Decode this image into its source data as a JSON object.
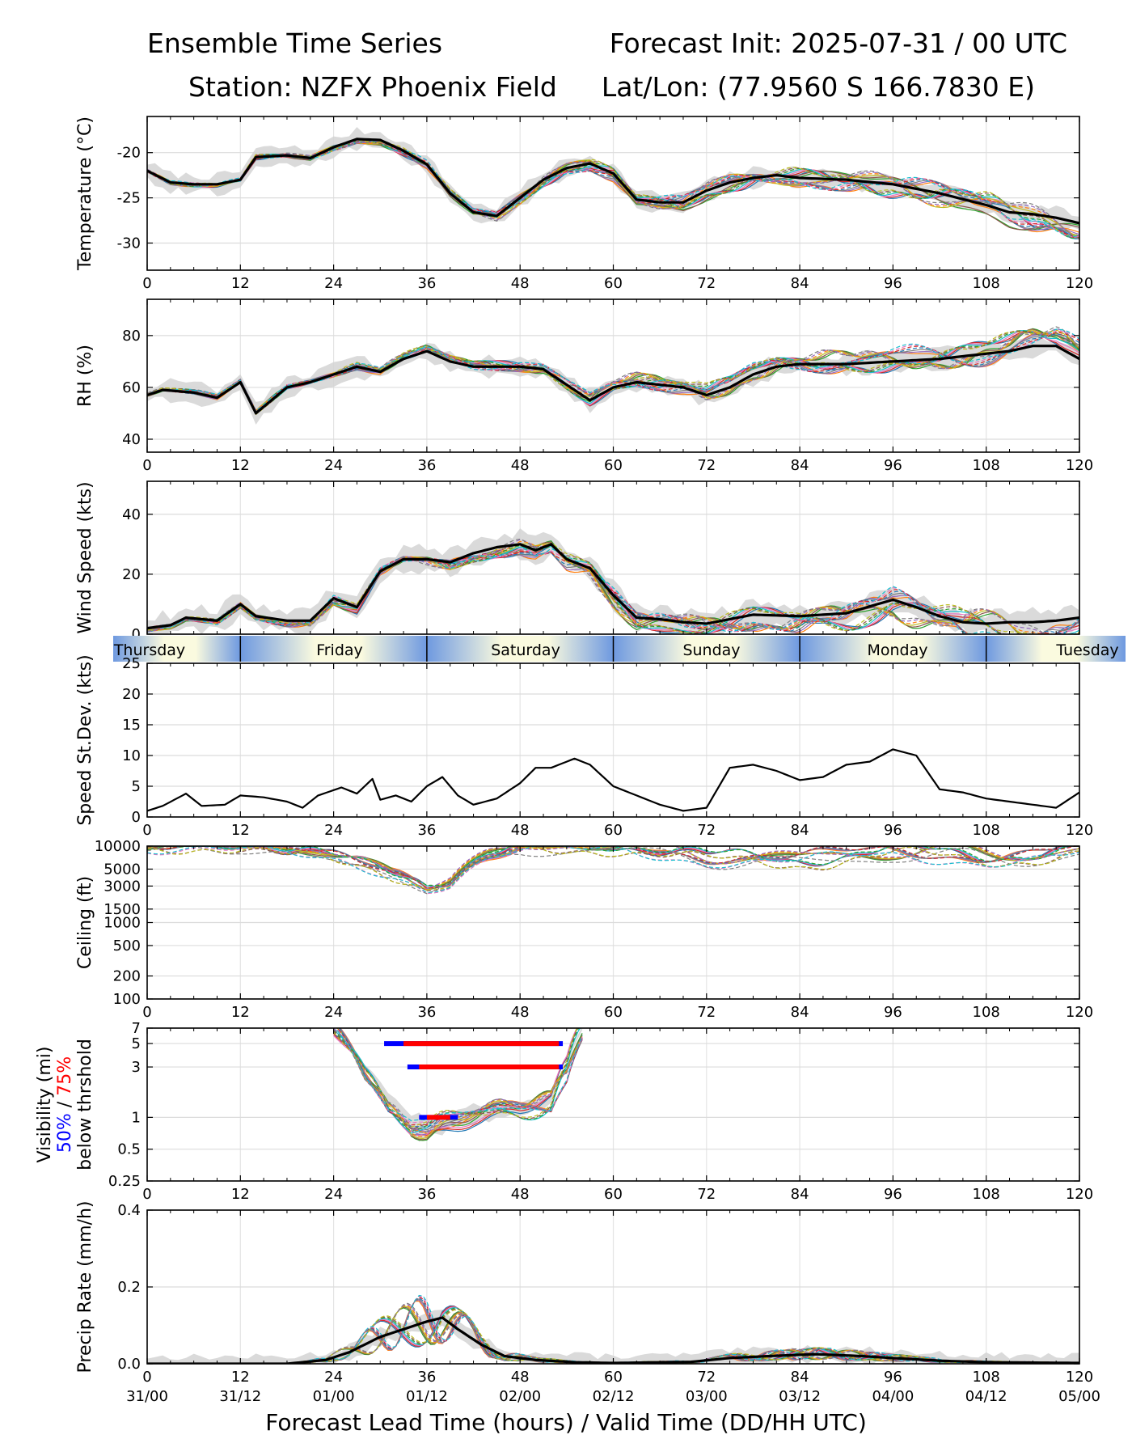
{
  "header": {
    "title_left": "Ensemble Time Series",
    "title_right": "Forecast Init: 2025-07-31 / 00 UTC",
    "station": "Station: NZFX Phoenix Field",
    "latlon": "Lat/Lon: (77.9560 S 166.7830 E)"
  },
  "xlabel": "Forecast Lead Time (hours) / Valid Time (DD/HH UTC)",
  "x_ticks": [
    0,
    12,
    24,
    36,
    48,
    60,
    72,
    84,
    96,
    108,
    120
  ],
  "valid_time_labels": [
    "31/00",
    "31/12",
    "01/00",
    "01/12",
    "02/00",
    "02/12",
    "03/00",
    "03/12",
    "04/00",
    "04/12",
    "05/00"
  ],
  "day_labels": [
    "Thursday",
    "Friday",
    "Saturday",
    "Sunday",
    "Monday",
    "Tuesday"
  ],
  "colors": {
    "mean": "#000000",
    "spread": "#d3d3d3",
    "p50": "#0000ff",
    "p75": "#ff0000",
    "members": [
      "#1f77b4",
      "#ff7f0e",
      "#2ca02c",
      "#d62728",
      "#9467bd",
      "#8c564b",
      "#e377c2",
      "#7f7f7f",
      "#bcbd22",
      "#17becf"
    ]
  },
  "chart_data": [
    {
      "type": "line",
      "ylabel": "Temperature (°C)",
      "ylim": [
        -33,
        -16
      ],
      "yticks": [
        -20,
        -25,
        -30
      ],
      "series": [
        {
          "values": [
            [
              0,
              -22
            ],
            [
              3,
              -23.3
            ],
            [
              6,
              -23.5
            ],
            [
              9,
              -23.5
            ],
            [
              12,
              -23
            ],
            [
              14,
              -20.5
            ],
            [
              18,
              -20.3
            ],
            [
              21,
              -20.6
            ],
            [
              24,
              -19.4
            ],
            [
              27,
              -18.5
            ],
            [
              30,
              -18.6
            ],
            [
              33,
              -19.8
            ],
            [
              36,
              -21.3
            ],
            [
              39,
              -24.5
            ],
            [
              42,
              -26.6
            ],
            [
              45,
              -27
            ],
            [
              48,
              -25
            ],
            [
              51,
              -23
            ],
            [
              54,
              -21.7
            ],
            [
              57,
              -21.2
            ],
            [
              60,
              -22.3
            ],
            [
              63,
              -25.2
            ],
            [
              66,
              -25.5
            ],
            [
              69,
              -25.5
            ],
            [
              72,
              -24.2
            ],
            [
              75,
              -23.3
            ],
            [
              78,
              -22.8
            ],
            [
              81,
              -22.5
            ],
            [
              84,
              -22.8
            ],
            [
              90,
              -23
            ],
            [
              96,
              -23.5
            ],
            [
              102,
              -24.5
            ],
            [
              108,
              -25.8
            ],
            [
              111,
              -26.6
            ],
            [
              114,
              -26.8
            ],
            [
              117,
              -27.2
            ],
            [
              120,
              -27.8
            ]
          ]
        }
      ]
    },
    {
      "type": "line",
      "ylabel": "RH (%)",
      "ylim": [
        35,
        94
      ],
      "yticks": [
        40,
        60,
        80
      ],
      "series": [
        {
          "values": [
            [
              0,
              57
            ],
            [
              2,
              59
            ],
            [
              6,
              58
            ],
            [
              9,
              56
            ],
            [
              12,
              62
            ],
            [
              14,
              50
            ],
            [
              16,
              55
            ],
            [
              18,
              60
            ],
            [
              21,
              62
            ],
            [
              24,
              65
            ],
            [
              27,
              68
            ],
            [
              30,
              66
            ],
            [
              33,
              71
            ],
            [
              36,
              74
            ],
            [
              39,
              70
            ],
            [
              42,
              68
            ],
            [
              48,
              68
            ],
            [
              51,
              67
            ],
            [
              54,
              61
            ],
            [
              57,
              55
            ],
            [
              60,
              60
            ],
            [
              63,
              62
            ],
            [
              66,
              61
            ],
            [
              69,
              60
            ],
            [
              72,
              57
            ],
            [
              75,
              60
            ],
            [
              78,
              65
            ],
            [
              81,
              68
            ],
            [
              84,
              69
            ],
            [
              90,
              69
            ],
            [
              96,
              70
            ],
            [
              102,
              71
            ],
            [
              108,
              73
            ],
            [
              111,
              74
            ],
            [
              114,
              76
            ],
            [
              117,
              76
            ],
            [
              120,
              71
            ]
          ]
        }
      ]
    },
    {
      "type": "line",
      "ylabel": "Wind Speed (kts)",
      "ylim": [
        0,
        51
      ],
      "yticks": [
        0,
        20,
        40
      ],
      "series": [
        {
          "values": [
            [
              0,
              2
            ],
            [
              3,
              3
            ],
            [
              5,
              5.5
            ],
            [
              9,
              4.5
            ],
            [
              12,
              10
            ],
            [
              14,
              6
            ],
            [
              18,
              4.5
            ],
            [
              21,
              4.5
            ],
            [
              24,
              12
            ],
            [
              27,
              9
            ],
            [
              30,
              21
            ],
            [
              33,
              25
            ],
            [
              36,
              25
            ],
            [
              39,
              24
            ],
            [
              42,
              27
            ],
            [
              45,
              29
            ],
            [
              48,
              30
            ],
            [
              50,
              28
            ],
            [
              52,
              30
            ],
            [
              54,
              25
            ],
            [
              57,
              22
            ],
            [
              60,
              13
            ],
            [
              63,
              5.5
            ],
            [
              66,
              5
            ],
            [
              69,
              4
            ],
            [
              72,
              3.5
            ],
            [
              75,
              5
            ],
            [
              78,
              6.5
            ],
            [
              84,
              6
            ],
            [
              90,
              7
            ],
            [
              96,
              11.5
            ],
            [
              99,
              9
            ],
            [
              102,
              6
            ],
            [
              105,
              4
            ],
            [
              108,
              3.5
            ],
            [
              111,
              4
            ],
            [
              114,
              4
            ],
            [
              117,
              4.5
            ],
            [
              120,
              5.5
            ]
          ]
        }
      ]
    },
    {
      "type": "line",
      "ylabel": "Speed St.Dev. (kts)",
      "ylim": [
        0,
        25
      ],
      "yticks": [
        0,
        5,
        10,
        15,
        20,
        25
      ],
      "series": [
        {
          "values": [
            [
              0,
              1
            ],
            [
              2,
              1.8
            ],
            [
              5,
              3.8
            ],
            [
              7,
              1.8
            ],
            [
              10,
              2
            ],
            [
              12,
              3.5
            ],
            [
              15,
              3.2
            ],
            [
              18,
              2.5
            ],
            [
              20,
              1.5
            ],
            [
              22,
              3.5
            ],
            [
              25,
              4.8
            ],
            [
              27,
              3.8
            ],
            [
              29,
              6.2
            ],
            [
              30,
              2.8
            ],
            [
              32,
              3.5
            ],
            [
              34,
              2.5
            ],
            [
              36,
              5
            ],
            [
              38,
              6.5
            ],
            [
              40,
              3.5
            ],
            [
              42,
              2
            ],
            [
              45,
              3
            ],
            [
              48,
              5.5
            ],
            [
              50,
              8
            ],
            [
              52,
              8
            ],
            [
              55,
              9.5
            ],
            [
              57,
              8.5
            ],
            [
              60,
              5
            ],
            [
              62,
              4
            ],
            [
              66,
              2
            ],
            [
              69,
              1
            ],
            [
              72,
              1.5
            ],
            [
              75,
              8
            ],
            [
              78,
              8.5
            ],
            [
              81,
              7.5
            ],
            [
              84,
              6
            ],
            [
              87,
              6.5
            ],
            [
              90,
              8.5
            ],
            [
              93,
              9
            ],
            [
              96,
              11
            ],
            [
              99,
              10
            ],
            [
              102,
              4.5
            ],
            [
              105,
              4
            ],
            [
              108,
              3
            ],
            [
              111,
              2.5
            ],
            [
              114,
              2
            ],
            [
              117,
              1.5
            ],
            [
              120,
              4
            ]
          ]
        }
      ]
    },
    {
      "type": "line",
      "ylabel": "Ceiling (ft)",
      "yscale": "log",
      "ylim": [
        100,
        10000
      ],
      "yticks": [
        10000,
        5000,
        3000,
        1500,
        1000,
        500,
        200,
        100
      ],
      "series": [
        {
          "values": [
            [
              0,
              9500
            ],
            [
              12,
              10000
            ],
            [
              24,
              7000
            ],
            [
              30,
              5000
            ],
            [
              36,
              3000
            ],
            [
              39,
              3500
            ],
            [
              44,
              7000
            ],
            [
              48,
              9000
            ],
            [
              60,
              10000
            ],
            [
              72,
              7000
            ],
            [
              84,
              6500
            ],
            [
              96,
              8000
            ],
            [
              108,
              7500
            ],
            [
              120,
              8000
            ]
          ]
        }
      ]
    },
    {
      "type": "line",
      "ylabel": "Visibility (mi)",
      "ylabel_line2_p50": "50%",
      "ylabel_line2_sep": "/",
      "ylabel_line2_p75": "75%",
      "ylabel_line3": "below thrshold",
      "yscale": "log",
      "ylim": [
        0.25,
        7
      ],
      "yticks": [
        7,
        5,
        3,
        1,
        0.5,
        0.25
      ],
      "threshold_bars": [
        {
          "threshold": 5,
          "p50": [
            30.5,
            53.5
          ],
          "p75": [
            33,
            53
          ]
        },
        {
          "threshold": 3,
          "p50": [
            33.5,
            53.5
          ],
          "p75": [
            35,
            53
          ]
        },
        {
          "threshold": 1,
          "p50": [
            35,
            40
          ],
          "p75": [
            36,
            39
          ]
        }
      ],
      "series": [
        {
          "values": [
            [
              24,
              7
            ],
            [
              28,
              3
            ],
            [
              31,
              1.5
            ],
            [
              34,
              0.9
            ],
            [
              36,
              0.8
            ],
            [
              38,
              0.9
            ],
            [
              42,
              1.1
            ],
            [
              48,
              1.2
            ],
            [
              52,
              1.5
            ],
            [
              54,
              3
            ],
            [
              56,
              7
            ]
          ]
        }
      ]
    },
    {
      "type": "line",
      "ylabel": "Precip Rate (mm/h)",
      "ylim": [
        0,
        0.4
      ],
      "yticks": [
        0.0,
        0.2,
        0.4
      ],
      "series": [
        {
          "values": [
            [
              0,
              0
            ],
            [
              18,
              0
            ],
            [
              23,
              0.01
            ],
            [
              26,
              0.03
            ],
            [
              30,
              0.07
            ],
            [
              33,
              0.09
            ],
            [
              36,
              0.11
            ],
            [
              38,
              0.12
            ],
            [
              40,
              0.09
            ],
            [
              43,
              0.05
            ],
            [
              46,
              0.02
            ],
            [
              50,
              0.01
            ],
            [
              55,
              0.004
            ],
            [
              60,
              0.002
            ],
            [
              70,
              0.005
            ],
            [
              75,
              0.015
            ],
            [
              80,
              0.02
            ],
            [
              86,
              0.025
            ],
            [
              92,
              0.02
            ],
            [
              96,
              0.015
            ],
            [
              102,
              0.008
            ],
            [
              108,
              0.004
            ],
            [
              120,
              0.002
            ]
          ]
        }
      ]
    }
  ]
}
